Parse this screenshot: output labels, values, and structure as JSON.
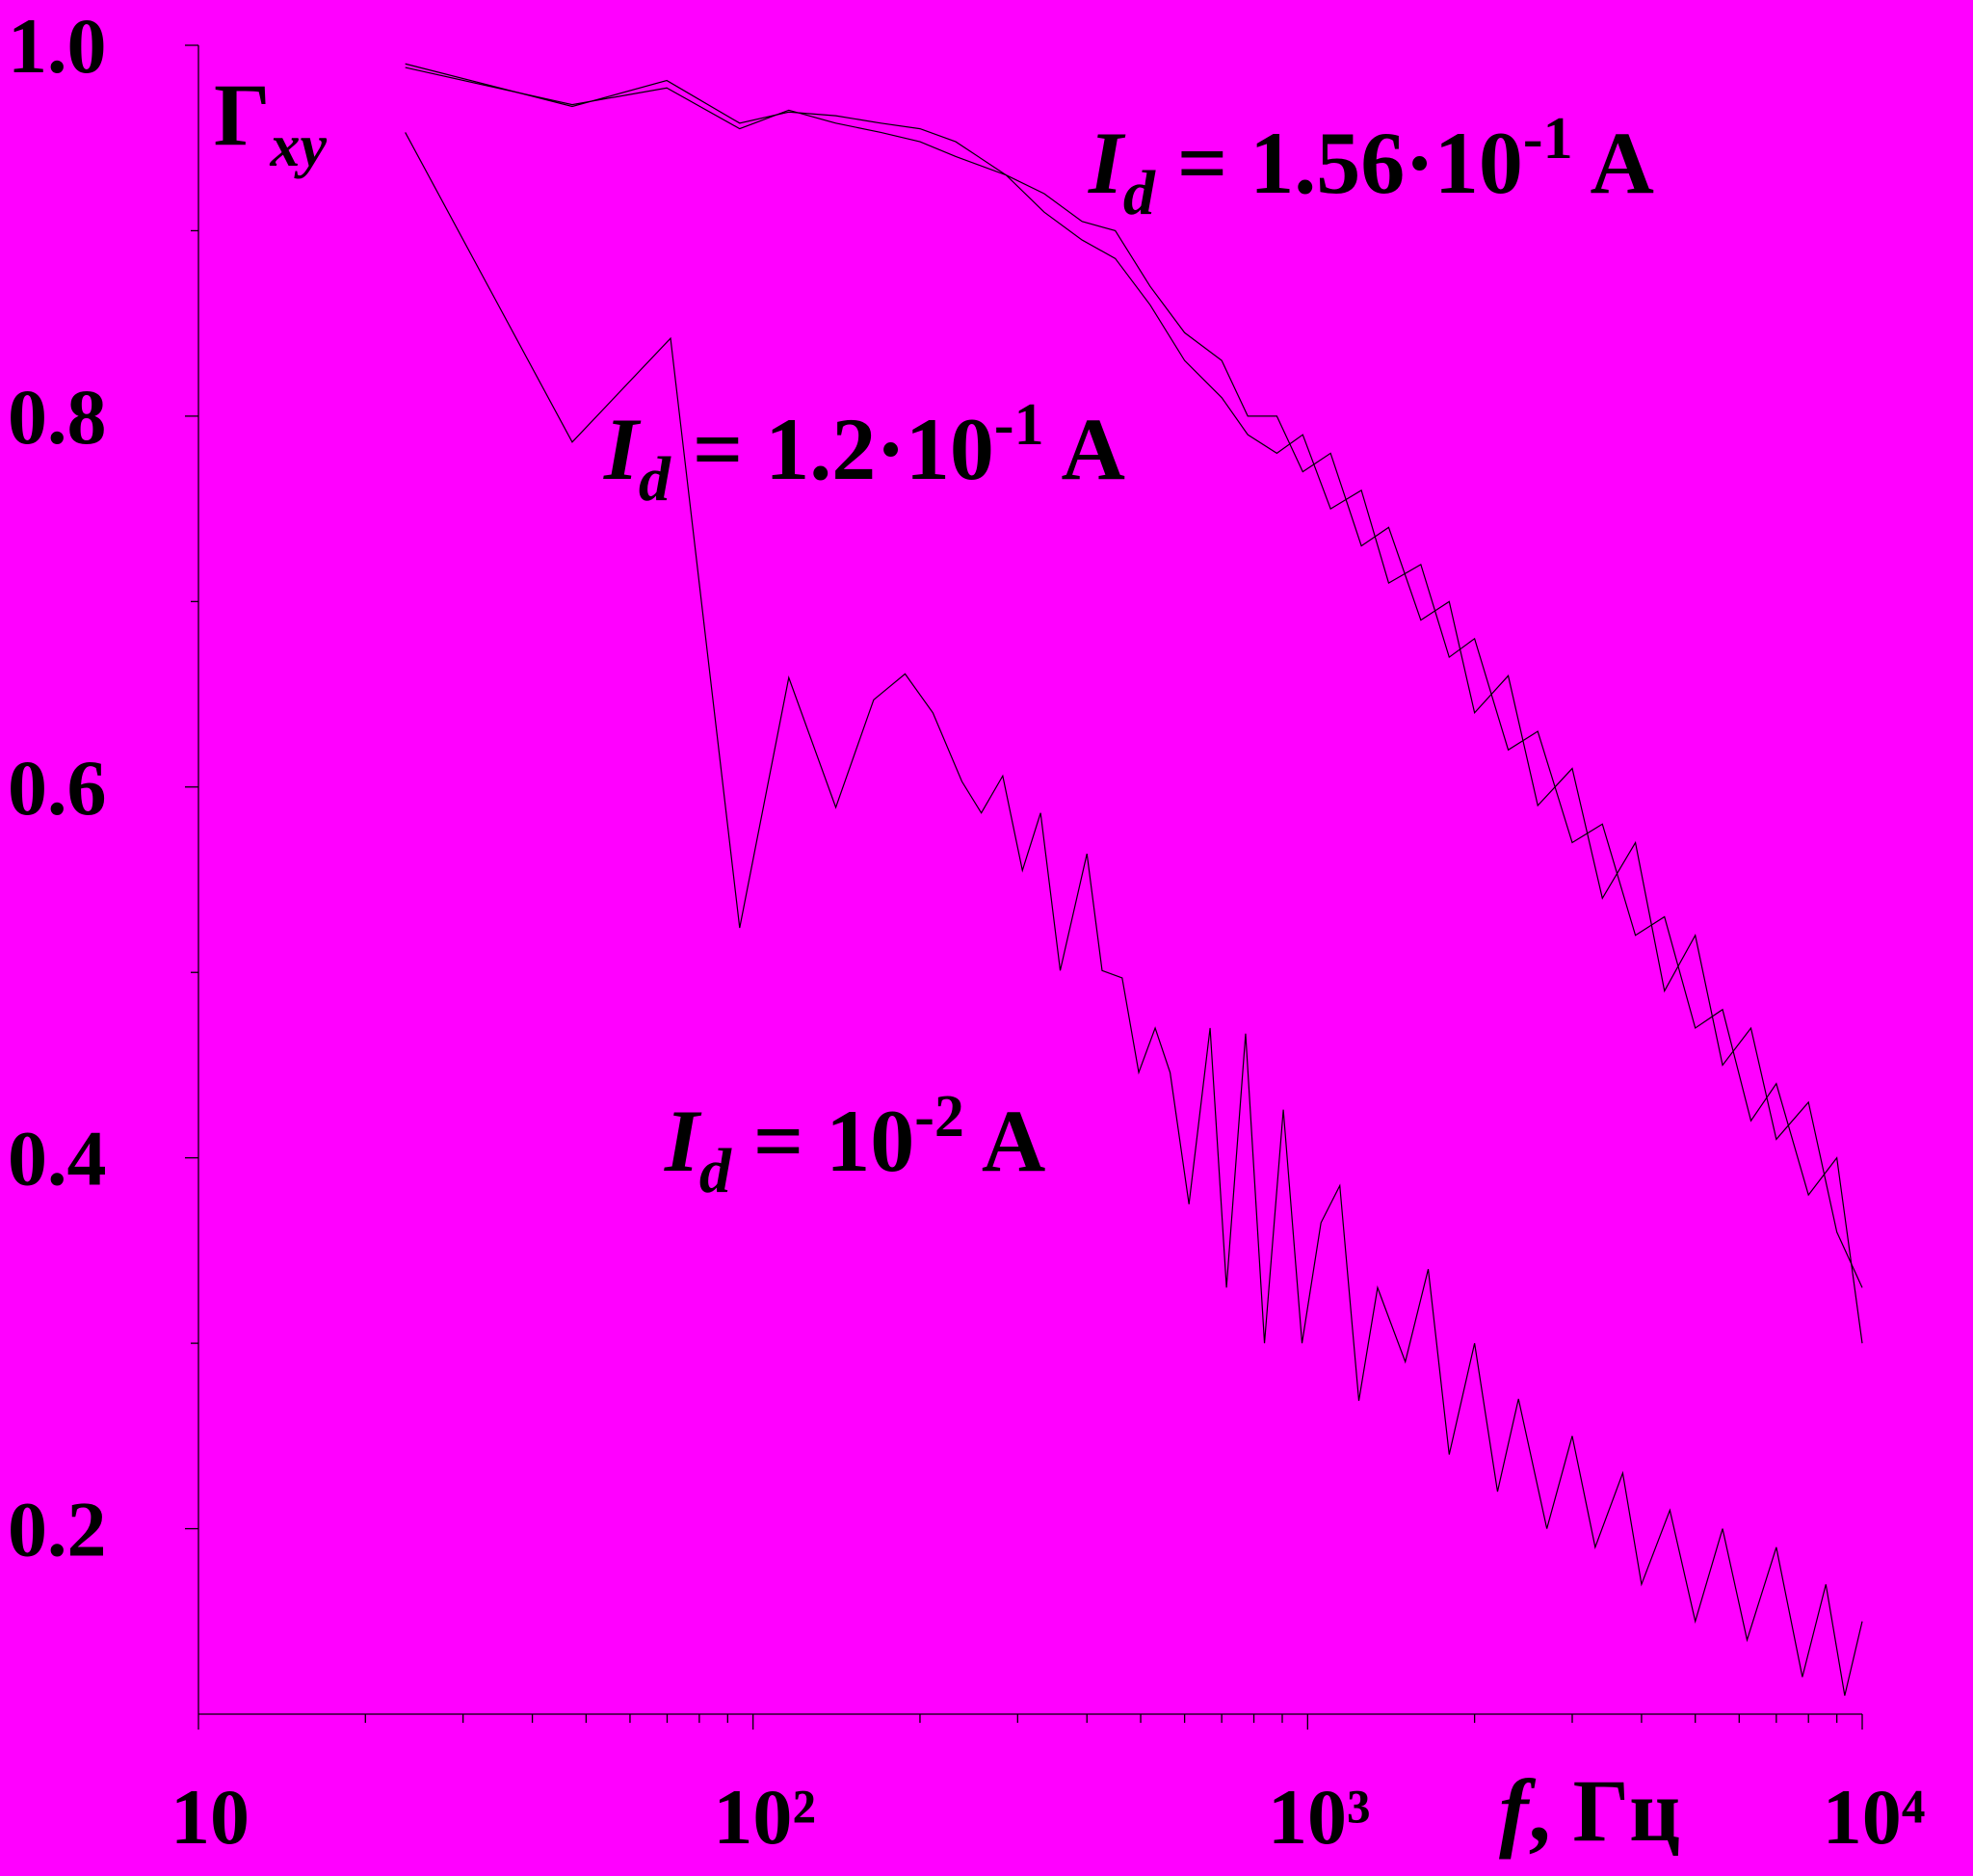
{
  "chart_data": {
    "type": "line",
    "background": "#ff00ff",
    "ylabel": {
      "symbol": "Γ",
      "subscript": "xy"
    },
    "xlabel": {
      "symbol": "f",
      "text": ", Гц"
    },
    "xscale": "log",
    "xlim": [
      10,
      10000
    ],
    "xticks": [
      10,
      {
        "value": 100,
        "label": "10²"
      },
      {
        "value": 1000,
        "label": "10³"
      },
      {
        "value": 10000,
        "label": "10⁴"
      }
    ],
    "xminorticks": [
      20,
      30,
      40,
      50,
      60,
      70,
      80,
      90,
      200,
      300,
      400,
      500,
      600,
      700,
      800,
      900,
      2000,
      3000,
      4000,
      5000,
      6000,
      7000,
      8000,
      9000
    ],
    "ylim": [
      0.1,
      1
    ],
    "yticks": [
      0.2,
      0.4,
      0.6,
      0.8,
      {
        "value": 1,
        "label": "1.0"
      }
    ],
    "yminorticks": [
      0.3,
      0.5,
      0.7,
      0.9
    ],
    "grid": false,
    "annotations": [
      {
        "symbol": "I",
        "subscript": "d",
        "text": " = 1.56·10",
        "exponent": "-1",
        "unit": " A"
      },
      {
        "symbol": "I",
        "subscript": "d",
        "text": " = 1.2·10",
        "exponent": "-1",
        "unit": " A"
      },
      {
        "symbol": "I",
        "subscript": "d",
        "text": " = 10",
        "exponent": "-2",
        "unit": " A"
      }
    ],
    "series": [
      {
        "color": "#000000",
        "x": [
          23.6,
          47.2,
          69.9,
          94.6,
          116,
          141,
          170,
          200,
          232,
          286,
          335,
          392,
          450,
          520,
          600,
          700,
          780,
          880,
          980,
          1100,
          1250,
          1400,
          1600,
          1800,
          2000,
          2300,
          2600,
          3000,
          3400,
          3900,
          4400,
          5000,
          5600,
          6300,
          7000,
          8000,
          9000,
          10000
        ],
        "values": [
          0.99,
          0.967,
          0.981,
          0.958,
          0.964,
          0.962,
          0.958,
          0.955,
          0.948,
          0.93,
          0.92,
          0.905,
          0.9,
          0.87,
          0.845,
          0.83,
          0.8,
          0.8,
          0.77,
          0.78,
          0.73,
          0.74,
          0.69,
          0.7,
          0.64,
          0.66,
          0.59,
          0.61,
          0.54,
          0.57,
          0.49,
          0.52,
          0.45,
          0.47,
          0.41,
          0.43,
          0.36,
          0.33
        ]
      },
      {
        "color": "#000000",
        "x": [
          23.6,
          47.2,
          69.9,
          94.6,
          116,
          141,
          170,
          200,
          232,
          286,
          335,
          392,
          450,
          520,
          600,
          700,
          780,
          880,
          980,
          1100,
          1250,
          1400,
          1600,
          1800,
          2000,
          2300,
          2600,
          3000,
          3400,
          3900,
          4400,
          5000,
          5600,
          6300,
          7000,
          8000,
          9000,
          10000
        ],
        "values": [
          0.988,
          0.968,
          0.977,
          0.955,
          0.965,
          0.958,
          0.953,
          0.948,
          0.94,
          0.93,
          0.91,
          0.895,
          0.885,
          0.86,
          0.83,
          0.81,
          0.79,
          0.78,
          0.79,
          0.75,
          0.76,
          0.71,
          0.72,
          0.67,
          0.68,
          0.62,
          0.63,
          0.57,
          0.58,
          0.52,
          0.53,
          0.47,
          0.48,
          0.42,
          0.44,
          0.38,
          0.4,
          0.3
        ]
      },
      {
        "color": "#000000",
        "x": [
          23.6,
          47.2,
          71,
          94.6,
          116,
          141,
          165,
          188,
          211,
          238,
          258,
          282,
          306,
          330,
          358,
          400,
          426,
          463,
          496,
          531,
          565,
          611,
          667,
          714,
          773,
          836,
          904,
          977,
          1057,
          1143,
          1237,
          1337,
          1500,
          1650,
          1800,
          2000,
          2200,
          2400,
          2700,
          3000,
          3300,
          3700,
          4000,
          4500,
          5000,
          5600,
          6200,
          7000,
          7800,
          8600,
          9300,
          10000
        ],
        "values": [
          0.953,
          0.786,
          0.842,
          0.524,
          0.659,
          0.589,
          0.647,
          0.661,
          0.64,
          0.603,
          0.586,
          0.606,
          0.555,
          0.586,
          0.501,
          0.564,
          0.501,
          0.497,
          0.446,
          0.47,
          0.446,
          0.375,
          0.47,
          0.33,
          0.467,
          0.3,
          0.426,
          0.3,
          0.365,
          0.385,
          0.269,
          0.33,
          0.29,
          0.34,
          0.24,
          0.3,
          0.22,
          0.27,
          0.2,
          0.25,
          0.19,
          0.23,
          0.17,
          0.21,
          0.15,
          0.2,
          0.14,
          0.19,
          0.12,
          0.17,
          0.11,
          0.15
        ]
      }
    ]
  }
}
